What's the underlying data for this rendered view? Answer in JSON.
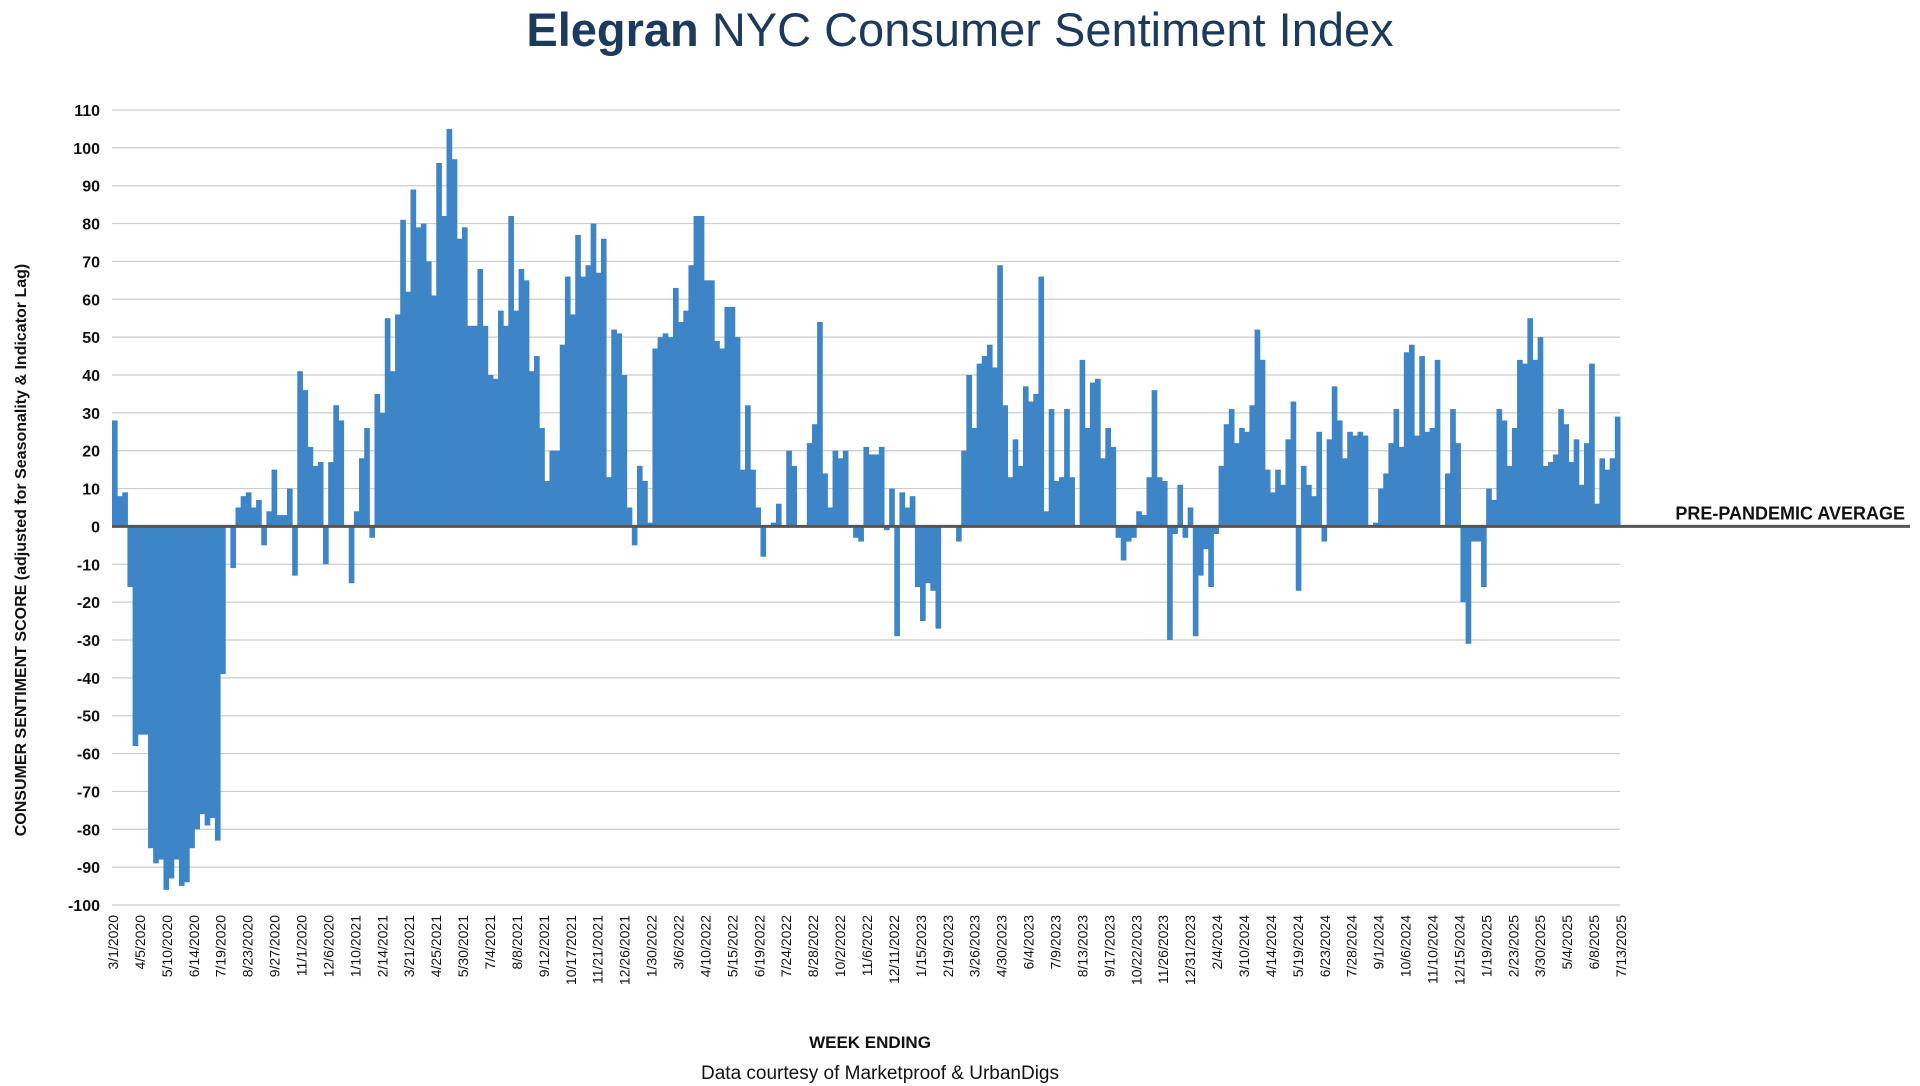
{
  "page": {
    "title_brand": "Elegran",
    "title_rest": "NYC Consumer Sentiment Index",
    "credit": "Data courtesy of Marketproof & UrbanDigs"
  },
  "colors": {
    "bar": "#3d85c6",
    "grid": "#cccccc",
    "zero_line": "#555555",
    "title": "#1c3a5e"
  },
  "chart_data": {
    "type": "bar",
    "title": "Elegran NYC Consumer Sentiment Index",
    "xlabel": "WEEK ENDING",
    "ylabel": "CONSUMER SENTIMENT SCORE (adjusted for Seasonality & Indicator Lag)",
    "ylim": [
      -100,
      110
    ],
    "yticks": [
      110,
      100,
      90,
      80,
      70,
      60,
      50,
      40,
      30,
      20,
      10,
      0,
      -10,
      -20,
      -30,
      -40,
      -50,
      -60,
      -70,
      -80,
      -90,
      -100
    ],
    "grid": true,
    "reference_line": {
      "value": 0,
      "label": "PRE-PANDEMIC AVERAGE"
    },
    "x_tick_labels": [
      "3/1/2020",
      "4/5/2020",
      "5/10/2020",
      "6/14/2020",
      "7/19/2020",
      "8/23/2020",
      "9/27/2020",
      "11/1/2020",
      "12/6/2020",
      "1/10/2021",
      "2/14/2021",
      "3/21/2021",
      "4/25/2021",
      "5/30/2021",
      "7/4/2021",
      "8/8/2021",
      "9/12/2021",
      "10/17/2021",
      "11/21/2021",
      "12/26/2021",
      "1/30/2022",
      "3/6/2022",
      "4/10/2022",
      "5/15/2022",
      "6/19/2022",
      "7/24/2022",
      "8/28/2022",
      "10/2/2022",
      "11/6/2022",
      "12/11/2022",
      "1/15/2023",
      "2/19/2023",
      "3/26/2023",
      "4/30/2023",
      "6/4/2023",
      "7/9/2023",
      "8/13/2023",
      "9/17/2023",
      "10/22/2023",
      "11/26/2023",
      "12/31/2023",
      "2/4/2024",
      "3/10/2024",
      "4/14/2024",
      "5/19/2024",
      "6/23/2024",
      "7/28/2024",
      "9/1/2024",
      "10/6/2024",
      "11/10/2024",
      "12/15/2024",
      "1/19/2025",
      "2/23/2025",
      "3/30/2025",
      "5/4/2025",
      "6/8/2025",
      "7/13/2025"
    ],
    "values": [
      28,
      8,
      9,
      -16,
      -58,
      -55,
      -55,
      -85,
      -89,
      -88,
      -96,
      -93,
      -88,
      -95,
      -94,
      -85,
      -80,
      -76,
      -79,
      -77,
      -83,
      -39,
      0,
      -11,
      5,
      8,
      9,
      5,
      7,
      -5,
      4,
      15,
      3,
      3,
      10,
      -13,
      41,
      36,
      21,
      16,
      17,
      -10,
      17,
      32,
      28,
      0,
      -15,
      4,
      18,
      26,
      -3,
      35,
      30,
      55,
      41,
      56,
      81,
      62,
      89,
      79,
      80,
      70,
      61,
      96,
      82,
      105,
      97,
      76,
      79,
      53,
      53,
      68,
      53,
      40,
      39,
      57,
      53,
      82,
      57,
      68,
      65,
      41,
      45,
      26,
      12,
      20,
      20,
      48,
      66,
      56,
      77,
      66,
      69,
      80,
      67,
      76,
      13,
      52,
      51,
      40,
      5,
      -5,
      16,
      12,
      1,
      47,
      50,
      51,
      50,
      63,
      54,
      57,
      69,
      82,
      82,
      65,
      65,
      49,
      47,
      58,
      58,
      50,
      15,
      32,
      15,
      5,
      -8,
      0,
      1,
      6,
      0,
      20,
      16,
      0,
      0,
      22,
      27,
      54,
      14,
      5,
      20,
      18,
      20,
      0,
      -3,
      -4,
      21,
      19,
      19,
      21,
      -1,
      10,
      -29,
      9,
      5,
      8,
      -16,
      -25,
      -15,
      -17,
      -27,
      0,
      0,
      0,
      -4,
      20,
      40,
      26,
      43,
      45,
      48,
      42,
      69,
      32,
      13,
      23,
      16,
      37,
      33,
      35,
      66,
      4,
      31,
      12,
      13,
      31,
      13,
      0,
      44,
      26,
      38,
      39,
      18,
      26,
      21,
      -3,
      -9,
      -4,
      -3,
      4,
      3,
      13,
      36,
      13,
      12,
      -30,
      -2,
      11,
      -3,
      5,
      -29,
      -13,
      -6,
      -16,
      -2,
      16,
      27,
      31,
      22,
      26,
      25,
      32,
      52,
      44,
      15,
      9,
      15,
      11,
      23,
      33,
      -17,
      16,
      11,
      8,
      25,
      -4,
      23,
      37,
      28,
      18,
      25,
      24,
      25,
      24,
      0,
      1,
      10,
      14,
      22,
      31,
      21,
      46,
      48,
      24,
      45,
      25,
      26,
      44,
      0,
      14,
      31,
      22,
      -20,
      -31,
      -4,
      -4,
      -16,
      10,
      7,
      31,
      28,
      16,
      26,
      44,
      43,
      55,
      44,
      50,
      16,
      17,
      19,
      31,
      27,
      17,
      23,
      11,
      22,
      43,
      6,
      18,
      15,
      18,
      29
    ]
  }
}
